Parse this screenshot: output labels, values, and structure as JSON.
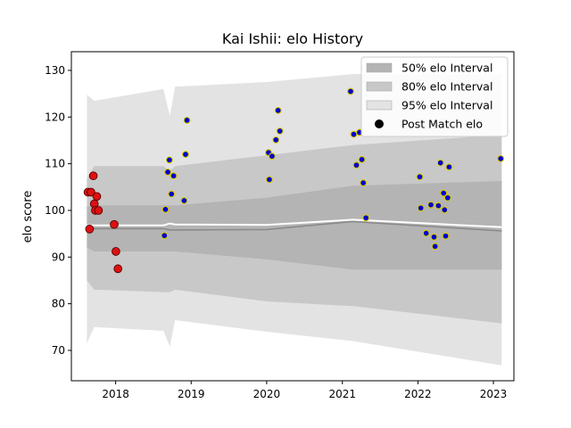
{
  "chart_data": {
    "type": "scatter",
    "title": "Kai Ishii: elo History",
    "xlabel": "",
    "ylabel": "elo score",
    "xlim": [
      "2017-06-01",
      "2023-04-10"
    ],
    "ylim": [
      63.5,
      134
    ],
    "x_ticks": [
      "2018",
      "2019",
      "2020",
      "2021",
      "2022",
      "2023"
    ],
    "y_ticks": [
      70,
      80,
      90,
      100,
      110,
      120,
      130
    ],
    "grid": false,
    "legend": {
      "placement": "top-right",
      "entries": [
        "50% elo Interval",
        "80% elo Interval",
        "95% elo Interval",
        "Post Match elo"
      ]
    },
    "colors": {
      "band_50": "#b4b4b4",
      "band_80": "#c8c8c8",
      "band_95": "#e3e3e3",
      "mean_line": "#8a8a8a",
      "median_line": "#ffffff",
      "point_early": "#dd1111",
      "point_early_edge": "#550000",
      "point_late": "#0000cc",
      "point_late_edge": "#d8cc00"
    },
    "series": [
      {
        "role": "intervals",
        "x": [
          "2017-08-15",
          "2017-09-20",
          "2018-08-20",
          "2018-09-20",
          "2018-10-15",
          "2019-12-31",
          "2021-02-20",
          "2023-02-10"
        ],
        "band_50": [
          [
            92.0,
            100.8
          ],
          [
            91.2,
            101.1
          ],
          [
            91.2,
            101.1
          ],
          [
            91.2,
            101.1
          ],
          [
            91.2,
            101.1
          ],
          [
            89.5,
            102.7
          ],
          [
            87.3,
            105.3
          ],
          [
            87.3,
            106.3
          ]
        ],
        "band_80": [
          [
            85.0,
            106.8
          ],
          [
            83.0,
            109.5
          ],
          [
            82.5,
            109.5
          ],
          [
            82.5,
            108.5
          ],
          [
            83.0,
            109.5
          ],
          [
            80.5,
            111.8
          ],
          [
            79.5,
            114.0
          ],
          [
            75.8,
            116.2
          ]
        ],
        "band_95": [
          [
            71.5,
            124.8
          ],
          [
            75.0,
            123.5
          ],
          [
            74.2,
            126.0
          ],
          [
            70.8,
            120.2
          ],
          [
            76.5,
            126.5
          ],
          [
            74.0,
            127.5
          ],
          [
            72.0,
            129.2
          ],
          [
            66.8,
            129.2
          ]
        ],
        "mean": [
          96.8,
          96.1,
          96.1,
          95.8,
          95.8,
          95.9,
          97.6,
          95.6
        ],
        "median": [
          96.8,
          96.8,
          96.8,
          97.2,
          97.0,
          96.9,
          98.0,
          96.4
        ]
      },
      {
        "role": "post_match_early",
        "points": [
          [
            "2017-08-20",
            103.9
          ],
          [
            "2017-08-28",
            96.0
          ],
          [
            "2017-09-04",
            103.9
          ],
          [
            "2017-09-15",
            107.4
          ],
          [
            "2017-09-20",
            101.4
          ],
          [
            "2017-09-25",
            100.0
          ],
          [
            "2017-10-02",
            103.0
          ],
          [
            "2017-10-10",
            100.0
          ],
          [
            "2017-12-25",
            97.0
          ],
          [
            "2018-01-02",
            91.2
          ],
          [
            "2018-01-12",
            87.5
          ]
        ]
      },
      {
        "role": "post_match_late",
        "points": [
          [
            "2018-08-25",
            94.6
          ],
          [
            "2018-08-30",
            100.2
          ],
          [
            "2018-09-10",
            108.2
          ],
          [
            "2018-09-18",
            110.8
          ],
          [
            "2018-09-28",
            103.5
          ],
          [
            "2018-10-08",
            107.4
          ],
          [
            "2018-11-28",
            102.1
          ],
          [
            "2018-12-05",
            112.0
          ],
          [
            "2018-12-12",
            119.3
          ],
          [
            "2020-01-10",
            112.4
          ],
          [
            "2020-01-14",
            106.6
          ],
          [
            "2020-01-27",
            111.6
          ],
          [
            "2020-02-15",
            115.1
          ],
          [
            "2020-02-25",
            121.4
          ],
          [
            "2020-03-05",
            117.0
          ],
          [
            "2021-02-10",
            125.5
          ],
          [
            "2021-02-25",
            116.3
          ],
          [
            "2021-03-10",
            109.7
          ],
          [
            "2021-03-25",
            116.7
          ],
          [
            "2021-04-05",
            110.9
          ],
          [
            "2021-04-12",
            105.9
          ],
          [
            "2021-04-25",
            98.4
          ],
          [
            "2022-01-10",
            107.2
          ],
          [
            "2022-01-15",
            100.5
          ],
          [
            "2022-02-10",
            95.1
          ],
          [
            "2022-03-05",
            101.2
          ],
          [
            "2022-03-20",
            94.3
          ],
          [
            "2022-03-25",
            92.3
          ],
          [
            "2022-04-10",
            101.0
          ],
          [
            "2022-04-20",
            110.2
          ],
          [
            "2022-05-05",
            103.7
          ],
          [
            "2022-05-10",
            100.1
          ],
          [
            "2022-05-15",
            94.5
          ],
          [
            "2022-05-25",
            102.7
          ],
          [
            "2022-06-01",
            109.3
          ],
          [
            "2023-02-05",
            111.1
          ]
        ]
      }
    ]
  }
}
